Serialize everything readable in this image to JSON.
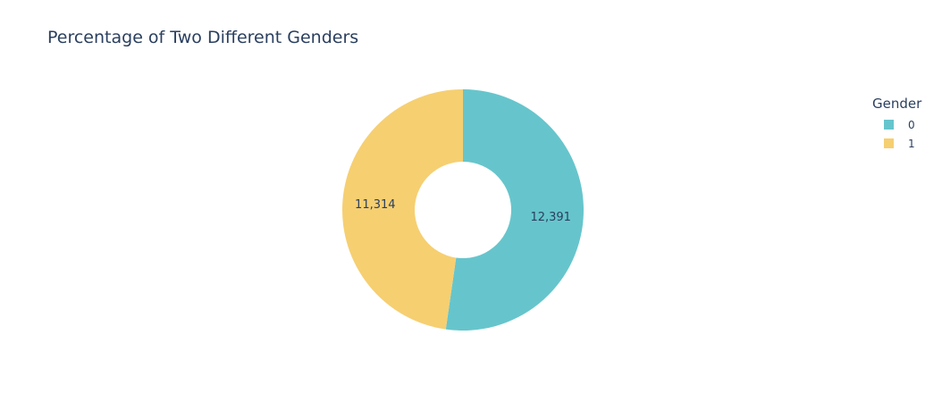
{
  "chart_data": {
    "type": "pie",
    "hole": true,
    "title": "Percentage of Two Different Genders",
    "legend": {
      "title": "Gender",
      "placement": "top-right"
    },
    "slices": [
      {
        "label": "0",
        "value": 12391,
        "value_text": "12,391",
        "color": "#66c5cc"
      },
      {
        "label": "1",
        "value": 11314,
        "value_text": "11,314",
        "color": "#f6cf71"
      }
    ]
  }
}
